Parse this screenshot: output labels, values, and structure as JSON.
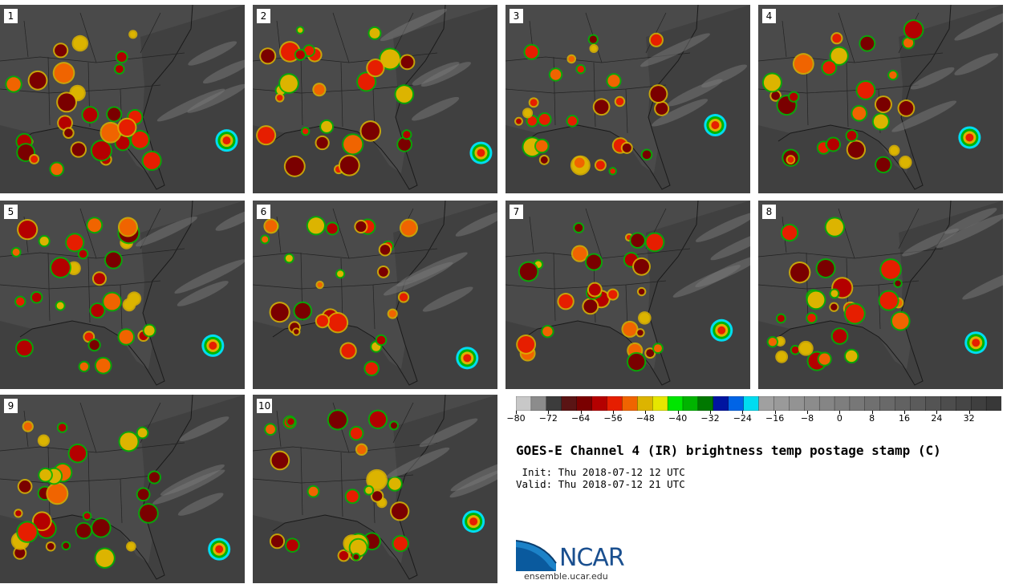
{
  "panels": [
    {
      "label": "1"
    },
    {
      "label": "2"
    },
    {
      "label": "3"
    },
    {
      "label": "4"
    },
    {
      "label": "5"
    },
    {
      "label": "6"
    },
    {
      "label": "7"
    },
    {
      "label": "8"
    },
    {
      "label": "9"
    },
    {
      "label": "10"
    }
  ],
  "colorbar": {
    "colors": [
      "#c8c8c8",
      "#8c8c8c",
      "#3c3c3c",
      "#5a1414",
      "#7a0000",
      "#b40000",
      "#e61e00",
      "#f06400",
      "#dcb400",
      "#e6e600",
      "#00e600",
      "#00b400",
      "#007800",
      "#0014a0",
      "#0064e6",
      "#00dcf0",
      "#a0a0a0",
      "#9a9a9a",
      "#939393",
      "#8c8c8c",
      "#858585",
      "#7e7e7e",
      "#777777",
      "#707070",
      "#696969",
      "#626262",
      "#5b5b5b",
      "#545454",
      "#4d4d4d",
      "#464646",
      "#3f3f3f",
      "#383838"
    ],
    "ticks": [
      "−80",
      "−72",
      "−64",
      "−56",
      "−48",
      "−40",
      "−32",
      "−24",
      "−16",
      "−8",
      "0",
      "8",
      "16",
      "24",
      "32"
    ],
    "tick_values": [
      -80,
      -72,
      -64,
      -56,
      -48,
      -40,
      -32,
      -24,
      -16,
      -8,
      0,
      8,
      16,
      24,
      32
    ],
    "min": -80,
    "max": 40
  },
  "title": "GOES-E Channel 4 (IR) brightness temp postage stamp (C)",
  "init": " Init: Thu 2018-07-12 12 UTC",
  "valid": "Valid: Thu 2018-07-12 21 UTC",
  "logo": {
    "text": "NCAR",
    "site": "ensemble.ucar.edu"
  }
}
